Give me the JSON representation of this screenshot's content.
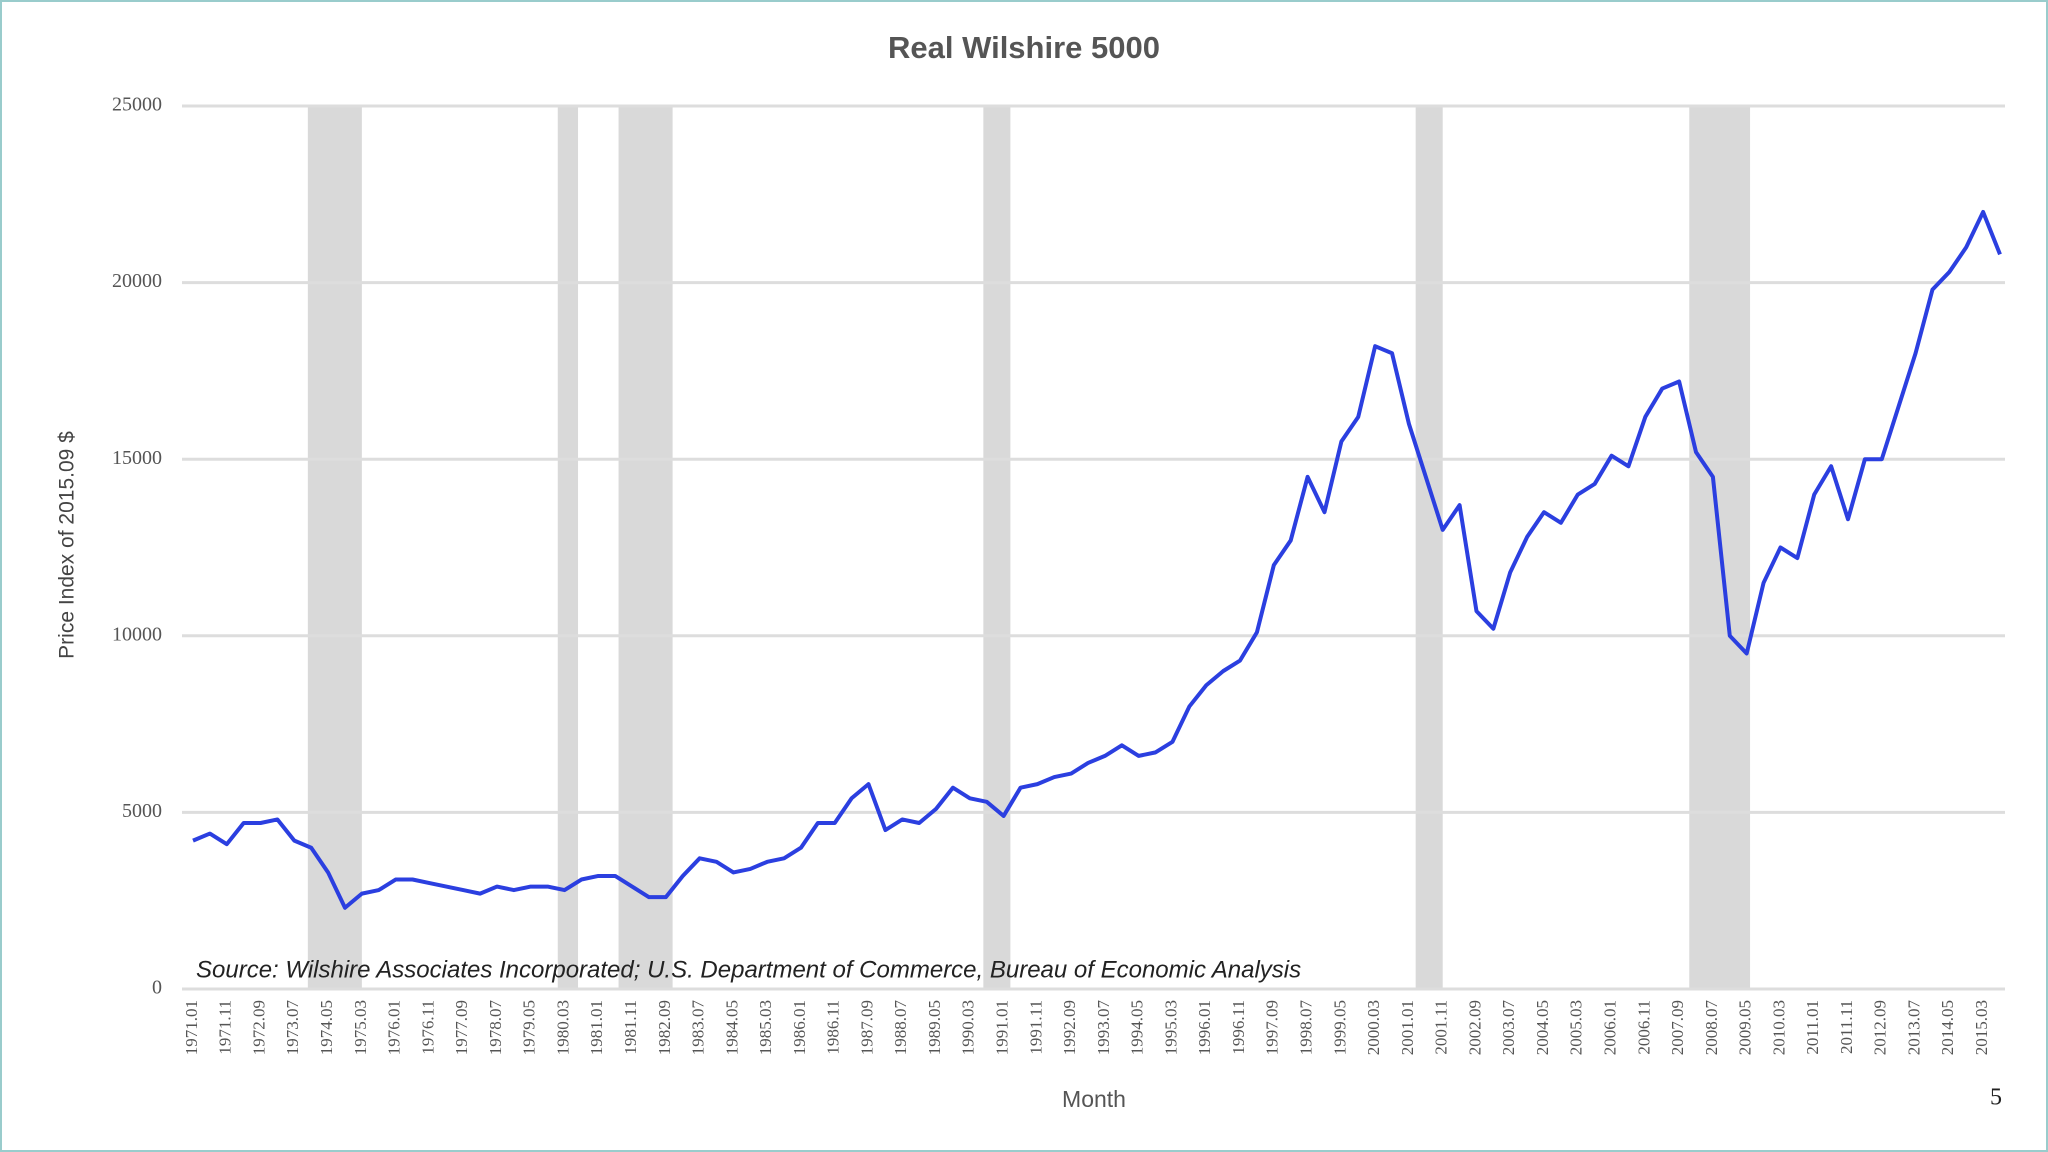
{
  "chart_data": {
    "type": "line",
    "title": "Real Wilshire 5000",
    "y_label": "Price Index of 2015.09 $",
    "x_label": "Month",
    "annotation": "Source: Wilshire Associates  Incorporated; U.S. Department of Commerce, Bureau of Economic Analysis",
    "page_number": "5",
    "categories": [
      "1971.01",
      null,
      "1971.11",
      null,
      "1972.09",
      null,
      "1973.07",
      null,
      "1974.05",
      null,
      "1975.03",
      null,
      "1976.01",
      null,
      "1976.11",
      null,
      "1977.09",
      null,
      "1978.07",
      null,
      "1979.05",
      null,
      "1980.03",
      null,
      "1981.01",
      null,
      "1981.11",
      null,
      "1982.09",
      null,
      "1983.07",
      null,
      "1984.05",
      null,
      "1985.03",
      null,
      "1986.01",
      null,
      "1986.11",
      null,
      "1987.09",
      null,
      "1988.07",
      null,
      "1989.05",
      null,
      "1990.03",
      null,
      "1991.01",
      null,
      "1991.11",
      null,
      "1992.09",
      null,
      "1993.07",
      null,
      "1994.05",
      null,
      "1995.03",
      null,
      "1996.01",
      null,
      "1996.11",
      null,
      "1997.09",
      null,
      "1998.07",
      null,
      "1999.05",
      null,
      "2000.03",
      null,
      "2001.01",
      null,
      "2001.11",
      null,
      "2002.09",
      null,
      "2003.07",
      null,
      "2004.05",
      null,
      "2005.03",
      null,
      "2006.01",
      null,
      "2006.11",
      null,
      "2007.09",
      null,
      "2008.07",
      null,
      "2009.05",
      null,
      "2010.03",
      null,
      "2011.01",
      null,
      "2011.11",
      null,
      "2012.09",
      null,
      "2013.07",
      null,
      "2014.05",
      null,
      "2015.03",
      null
    ],
    "series": [
      {
        "name": "Real Wilshire 5000",
        "color": "#2b3fe0",
        "values": [
          4200,
          4400,
          4100,
          4700,
          4700,
          4800,
          4200,
          4000,
          3300,
          2300,
          2700,
          2800,
          3100,
          3100,
          3000,
          2900,
          2800,
          2700,
          2900,
          2800,
          2900,
          2900,
          2800,
          3100,
          3200,
          3200,
          2900,
          2600,
          2600,
          3200,
          3700,
          3600,
          3300,
          3400,
          3600,
          3700,
          4000,
          4700,
          4700,
          5400,
          5800,
          4500,
          4800,
          4700,
          5100,
          5700,
          5400,
          5300,
          4900,
          5700,
          5800,
          6000,
          6100,
          6400,
          6600,
          6900,
          6600,
          6700,
          7000,
          8000,
          8600,
          9000,
          9300,
          10100,
          12000,
          12700,
          14500,
          13500,
          15500,
          16200,
          18200,
          18000,
          16000,
          14500,
          13000,
          13700,
          10700,
          10200,
          11800,
          12800,
          13500,
          13200,
          14000,
          14300,
          15100,
          14800,
          16200,
          17000,
          17200,
          15200,
          14500,
          10000,
          9500,
          11500,
          12500,
          12200,
          14000,
          14800,
          13300,
          15000,
          15000,
          16500,
          18000,
          19800,
          20300,
          21000,
          22000,
          20800
        ]
      }
    ],
    "shaded_periods": [
      [
        "1973.11",
        "1975.03"
      ],
      [
        "1980.01",
        "1980.07"
      ],
      [
        "1981.07",
        "1982.11"
      ],
      [
        "1990.07",
        "1991.03"
      ],
      [
        "2001.03",
        "2001.11"
      ],
      [
        "2007.12",
        "2009.06"
      ]
    ],
    "shade_color": "#d9d9d9",
    "ylim": [
      0,
      25000
    ],
    "yticks": [
      0,
      5000,
      10000,
      15000,
      20000,
      25000
    ],
    "grid": true
  }
}
